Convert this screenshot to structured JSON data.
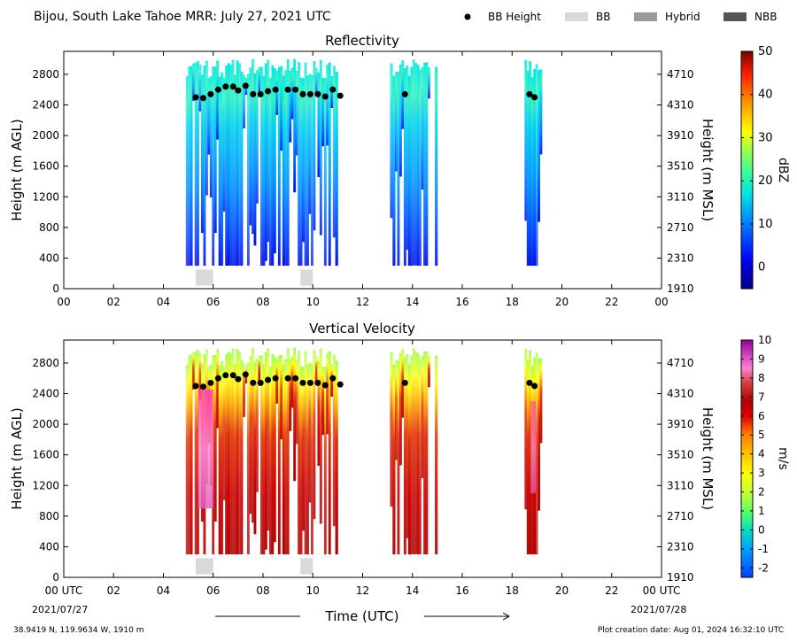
{
  "title": "Bijou, South Lake Tahoe MRR:  July 27, 2021 UTC",
  "legend": [
    {
      "label": "BB Height",
      "kind": "marker",
      "color": "#000000"
    },
    {
      "label": "BB",
      "kind": "patch",
      "color": "#d9d9d9"
    },
    {
      "label": "Hybrid",
      "kind": "patch",
      "color": "#999999"
    },
    {
      "label": "NBB",
      "kind": "patch",
      "color": "#555555"
    }
  ],
  "footer": {
    "location": "38.9419 N, 119.9634 W, 1910 m",
    "creation": "Plot creation date: Aug 01, 2024 16:32:10 UTC",
    "xlabel": "Time (UTC)",
    "start_date": "2021/07/27",
    "end_date": "2021/07/28"
  },
  "chart_data": [
    {
      "type": "heatmap",
      "title": "Reflectivity",
      "ylabel": "Height (m AGL)",
      "ylabel_right": "Height (m MSL)",
      "xlim": [
        0,
        24
      ],
      "ylim": [
        0,
        3100
      ],
      "xticks": [
        "00",
        "02",
        "04",
        "06",
        "08",
        "10",
        "12",
        "14",
        "16",
        "18",
        "20",
        "22",
        "00"
      ],
      "yticks_left": [
        "0",
        "400",
        "800",
        "1200",
        "1600",
        "2000",
        "2400",
        "2800"
      ],
      "yticks_right": [
        "1910",
        "2310",
        "2710",
        "3110",
        "3510",
        "3910",
        "4310",
        "4710"
      ],
      "colorbar": {
        "label": "dBZ",
        "min": -5,
        "max": 50,
        "ticks": [
          "0",
          "10",
          "20",
          "30",
          "40",
          "50"
        ]
      },
      "bb_height": [
        [
          5.3,
          2500
        ],
        [
          5.6,
          2490
        ],
        [
          5.9,
          2540
        ],
        [
          6.2,
          2600
        ],
        [
          6.5,
          2640
        ],
        [
          6.8,
          2640
        ],
        [
          7.0,
          2590
        ],
        [
          7.3,
          2650
        ],
        [
          7.6,
          2540
        ],
        [
          7.9,
          2540
        ],
        [
          8.2,
          2580
        ],
        [
          8.5,
          2600
        ],
        [
          9.0,
          2600
        ],
        [
          9.3,
          2600
        ],
        [
          9.6,
          2540
        ],
        [
          9.9,
          2540
        ],
        [
          10.2,
          2540
        ],
        [
          10.5,
          2510
        ],
        [
          10.8,
          2600
        ],
        [
          11.1,
          2520
        ],
        [
          13.7,
          2540
        ],
        [
          18.7,
          2540
        ],
        [
          18.9,
          2500
        ]
      ],
      "bb_flags": [
        {
          "type": "BB",
          "start": 5.3,
          "end": 6.0
        },
        {
          "type": "BB",
          "start": 9.5,
          "end": 10.0
        }
      ],
      "data_regions": [
        [
          4.9,
          6.3
        ],
        [
          6.3,
          8.6
        ],
        [
          8.6,
          10.8
        ],
        [
          10.8,
          11.0
        ],
        [
          13.1,
          13.3
        ],
        [
          13.3,
          14.7
        ],
        [
          14.9,
          15.0
        ],
        [
          18.5,
          19.2
        ]
      ]
    },
    {
      "type": "heatmap",
      "title": "Vertical Velocity",
      "ylabel": "Height (m AGL)",
      "ylabel_right": "Height (m MSL)",
      "xlim": [
        0,
        24
      ],
      "ylim": [
        0,
        3100
      ],
      "xticks": [
        "00 UTC",
        "02",
        "04",
        "06",
        "08",
        "10",
        "12",
        "14",
        "16",
        "18",
        "20",
        "22",
        "00 UTC"
      ],
      "yticks_left": [
        "0",
        "400",
        "800",
        "1200",
        "1600",
        "2000",
        "2400",
        "2800"
      ],
      "yticks_right": [
        "1910",
        "2310",
        "2710",
        "3110",
        "3510",
        "3910",
        "4310",
        "4710"
      ],
      "colorbar": {
        "label": "m/s",
        "min": -2.5,
        "max": 10,
        "ticks": [
          "-2",
          "-1",
          "0",
          "1",
          "2",
          "3",
          "4",
          "5",
          "6",
          "7",
          "8",
          "9",
          "10"
        ]
      },
      "bb_height": [
        [
          5.3,
          2500
        ],
        [
          5.6,
          2490
        ],
        [
          5.9,
          2540
        ],
        [
          6.2,
          2600
        ],
        [
          6.5,
          2640
        ],
        [
          6.8,
          2640
        ],
        [
          7.0,
          2590
        ],
        [
          7.3,
          2650
        ],
        [
          7.6,
          2540
        ],
        [
          7.9,
          2540
        ],
        [
          8.2,
          2580
        ],
        [
          8.5,
          2600
        ],
        [
          9.0,
          2600
        ],
        [
          9.3,
          2600
        ],
        [
          9.6,
          2540
        ],
        [
          9.9,
          2540
        ],
        [
          10.2,
          2540
        ],
        [
          10.5,
          2510
        ],
        [
          10.8,
          2600
        ],
        [
          11.1,
          2520
        ],
        [
          13.7,
          2540
        ],
        [
          18.7,
          2540
        ],
        [
          18.9,
          2500
        ]
      ],
      "bb_flags": [
        {
          "type": "BB",
          "start": 5.3,
          "end": 6.0
        },
        {
          "type": "BB",
          "start": 9.5,
          "end": 10.0
        }
      ]
    }
  ]
}
